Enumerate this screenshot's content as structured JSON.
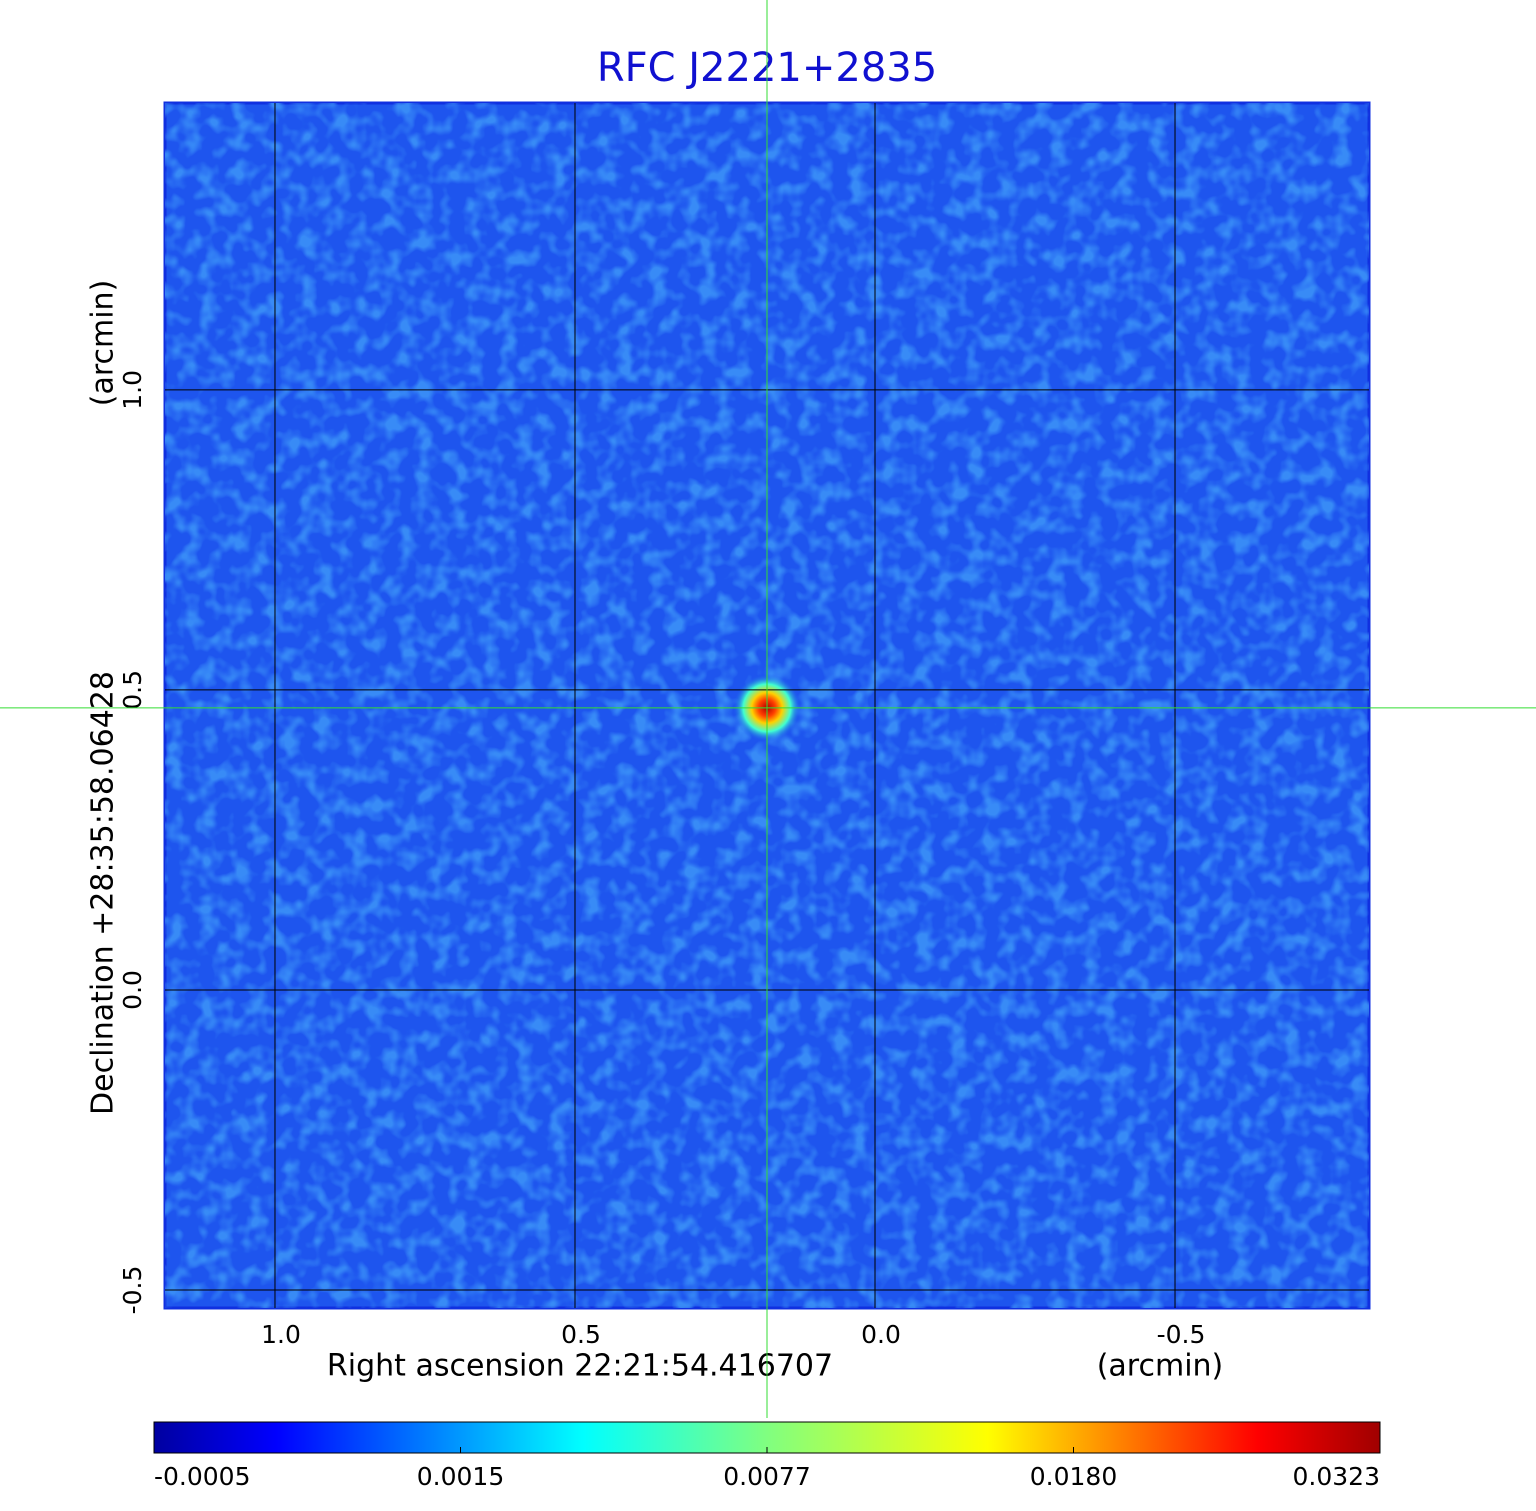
{
  "chart_data": {
    "type": "image",
    "title": "RFC J2221+2835",
    "xlabel": "Right ascension  22:21:54.416707",
    "xunit": "(arcmin)",
    "ylabel": "Declination  +28:35:58.06428",
    "yunit": "(arcmin)",
    "xlim": [
      1.1833,
      -0.8233
    ],
    "ylim": [
      -0.53,
      1.478
    ],
    "xticks": [
      {
        "value": 1,
        "label": "1.0"
      },
      0.5,
      {
        "value": 0,
        "label": "0.0"
      },
      -0.5
    ],
    "yticks": [
      {
        "value": 1,
        "label": "1.0"
      },
      0.5,
      {
        "value": 0,
        "label": "0.0"
      },
      -0.5
    ],
    "grid": true,
    "crosshair": {
      "x": 0.18,
      "y": 0.47,
      "color": "#33dd33"
    },
    "source": {
      "x": 0.18,
      "y": 0.47
    },
    "colorbar": {
      "ticks": [
        -0.0005,
        0.0015,
        0.0077,
        {
          "value": 0.018,
          "label": "0.0180"
        },
        0.0323
      ]
    }
  }
}
